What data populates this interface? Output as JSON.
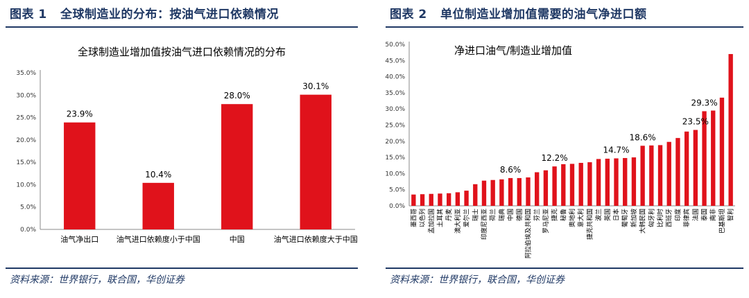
{
  "figures": [
    {
      "label": "图表 1",
      "title": "全球制造业的分布：按油气进口依赖情况",
      "source": "资料来源：世界银行，联合国，华创证券"
    },
    {
      "label": "图表 2",
      "title": "单位制造业增加值需要的油气净进口额",
      "source": "资料来源：世界银行，联合国，华创证券"
    }
  ],
  "chart_data": [
    {
      "type": "bar",
      "title": "全球制造业增加值按油气进口依赖情况的分布",
      "categories": [
        "油气净出口",
        "油气进口依赖度小于中国",
        "中国",
        "油气进口依赖度大于中国"
      ],
      "values": [
        23.9,
        10.4,
        28.0,
        30.1
      ],
      "data_labels": [
        "23.9%",
        "10.4%",
        "28.0%",
        "30.1%"
      ],
      "yticks": [
        "0.0%",
        "5.0%",
        "10.0%",
        "15.0%",
        "20.0%",
        "25.0%",
        "30.0%",
        "35.0%"
      ],
      "ylim": [
        0,
        35
      ],
      "color": "#e0121b",
      "grid": false,
      "legend": "none"
    },
    {
      "type": "bar",
      "title": "净进口油气/制造业增加值",
      "categories": [
        "墨西哥",
        "以色列",
        "孟加拉国",
        "土耳其",
        "丹麦",
        "澳大利亚",
        "爱尔兰",
        "瑞士",
        "印度尼西亚",
        "荷兰",
        "瑞典",
        "中国",
        "德国",
        "阿拉伯埃及共和国",
        "芬兰",
        "罗马尼亚",
        "捷克",
        "秘鲁",
        "奥地利",
        "意大利",
        "捷克共和国",
        "波兰",
        "英国",
        "日本",
        "葡萄牙",
        "新加坡",
        "大韩民国",
        "匈牙利",
        "比利时",
        "西班牙",
        "印度",
        "菲律宾",
        "法国",
        "泰国",
        "南非",
        "巴基斯坦",
        "智利"
      ],
      "values": [
        3.5,
        3.6,
        3.7,
        3.8,
        3.9,
        4.2,
        4.7,
        6.7,
        7.8,
        8.0,
        8.2,
        8.6,
        8.6,
        8.8,
        10.4,
        11.0,
        12.2,
        12.9,
        13.0,
        13.3,
        13.5,
        14.5,
        14.6,
        14.7,
        14.8,
        15.0,
        18.6,
        18.7,
        18.8,
        19.8,
        21.0,
        23.0,
        23.5,
        29.3,
        29.5,
        33.5,
        47.0
      ],
      "data_labels": [
        {
          "index": 11,
          "text": "8.6%"
        },
        {
          "index": 16,
          "text": "12.2%"
        },
        {
          "index": 23,
          "text": "14.7%"
        },
        {
          "index": 26,
          "text": "18.6%"
        },
        {
          "index": 32,
          "text": "23.5%"
        },
        {
          "index": 33,
          "text": "29.3%"
        }
      ],
      "yticks": [
        "0.0%",
        "5.0%",
        "10.0%",
        "15.0%",
        "20.0%",
        "25.0%",
        "30.0%",
        "35.0%",
        "40.0%",
        "45.0%",
        "50.0%"
      ],
      "ylim": [
        0,
        50
      ],
      "color": "#e0121b",
      "grid": false,
      "legend": "none"
    }
  ]
}
